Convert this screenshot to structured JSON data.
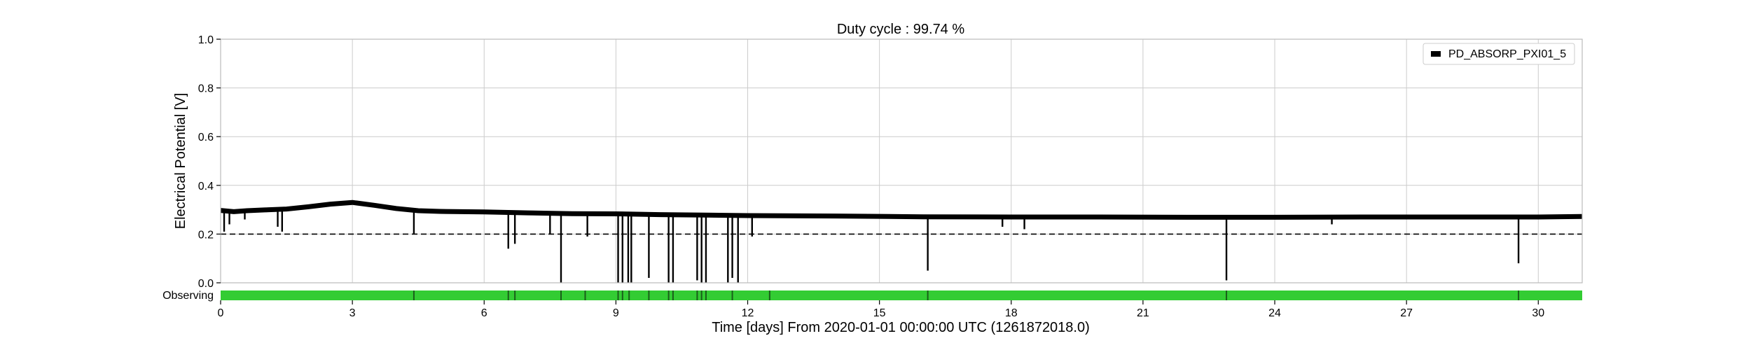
{
  "chart_data": {
    "type": "line",
    "title": "Duty cycle : 99.74 %",
    "xlabel": "Time [days] From 2020-01-01 00:00:00 UTC (1261872018.0)",
    "ylabel": "Electrical Potential [V]",
    "xlim": [
      0,
      31
    ],
    "ylim": [
      0.0,
      1.0
    ],
    "xticks": [
      0,
      3,
      6,
      9,
      12,
      15,
      18,
      21,
      24,
      27,
      30
    ],
    "yticks": [
      0.0,
      0.2,
      0.4,
      0.6,
      0.8,
      1.0
    ],
    "ytick_labels": [
      "0.0",
      "0.2",
      "0.4",
      "0.6",
      "0.8",
      "1.0"
    ],
    "grid": true,
    "legend_position": "top-right",
    "colors": {
      "series": "#000000",
      "observing": "#33cc33",
      "threshold": "#000000"
    },
    "series": [
      {
        "name": "PD_ABSORP_PXI01_5",
        "baseline": [
          [
            0.0,
            0.297
          ],
          [
            0.3,
            0.292
          ],
          [
            0.6,
            0.296
          ],
          [
            1.0,
            0.299
          ],
          [
            1.5,
            0.303
          ],
          [
            2.0,
            0.312
          ],
          [
            2.5,
            0.323
          ],
          [
            3.0,
            0.33
          ],
          [
            3.5,
            0.318
          ],
          [
            4.0,
            0.305
          ],
          [
            4.5,
            0.296
          ],
          [
            5.0,
            0.293
          ],
          [
            6.0,
            0.291
          ],
          [
            7.0,
            0.287
          ],
          [
            8.0,
            0.284
          ],
          [
            9.0,
            0.283
          ],
          [
            10.0,
            0.28
          ],
          [
            11.0,
            0.278
          ],
          [
            12.0,
            0.276
          ],
          [
            14.0,
            0.274
          ],
          [
            16.0,
            0.271
          ],
          [
            18.0,
            0.27
          ],
          [
            20.0,
            0.27
          ],
          [
            22.0,
            0.269
          ],
          [
            24.0,
            0.269
          ],
          [
            26.0,
            0.27
          ],
          [
            28.0,
            0.27
          ],
          [
            30.0,
            0.27
          ],
          [
            31.0,
            0.272
          ]
        ],
        "dips": [
          [
            0.08,
            0.21
          ],
          [
            0.2,
            0.24
          ],
          [
            0.55,
            0.26
          ],
          [
            1.3,
            0.23
          ],
          [
            1.4,
            0.21
          ],
          [
            4.4,
            0.2
          ],
          [
            6.55,
            0.14
          ],
          [
            6.7,
            0.16
          ],
          [
            7.5,
            0.2
          ],
          [
            7.75,
            0.0
          ],
          [
            8.35,
            0.19
          ],
          [
            9.05,
            0.0
          ],
          [
            9.15,
            0.0
          ],
          [
            9.28,
            0.0
          ],
          [
            9.35,
            0.0
          ],
          [
            9.75,
            0.02
          ],
          [
            10.2,
            0.0
          ],
          [
            10.3,
            0.0
          ],
          [
            10.85,
            0.01
          ],
          [
            10.95,
            0.0
          ],
          [
            11.05,
            0.0
          ],
          [
            11.55,
            0.0
          ],
          [
            11.65,
            0.02
          ],
          [
            11.78,
            0.0
          ],
          [
            12.1,
            0.19
          ],
          [
            16.1,
            0.05
          ],
          [
            17.8,
            0.23
          ],
          [
            18.3,
            0.22
          ],
          [
            22.9,
            0.01
          ],
          [
            25.3,
            0.24
          ],
          [
            29.55,
            0.08
          ]
        ],
        "threshold": 0.2
      }
    ],
    "observing_track": {
      "label": "Observing",
      "gaps": [
        4.4,
        6.55,
        6.7,
        7.75,
        8.3,
        9.05,
        9.15,
        9.3,
        9.75,
        10.2,
        10.3,
        10.85,
        10.95,
        11.05,
        11.65,
        12.5,
        16.1,
        22.9,
        29.55
      ]
    }
  }
}
